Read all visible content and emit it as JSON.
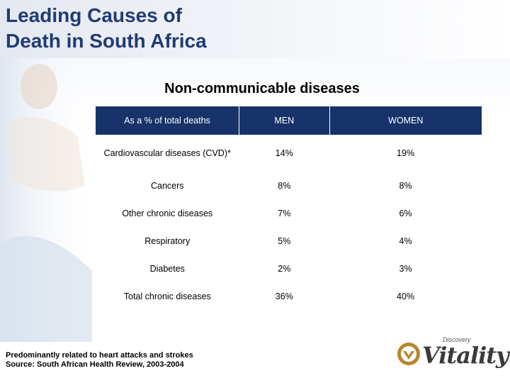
{
  "title": {
    "line1": "Leading Causes of",
    "line2": "Death in South Africa"
  },
  "subtitle": "Non-communicable diseases",
  "table": {
    "headers": [
      "As a % of total deaths",
      "MEN",
      "WOMEN"
    ],
    "rows": [
      {
        "label": "Cardiovascular diseases (CVD)*",
        "men": "14%",
        "women": "19%"
      },
      {
        "label": "Cancers",
        "men": "8%",
        "women": "8%"
      },
      {
        "label": "Other chronic diseases",
        "men": "7%",
        "women": "6%"
      },
      {
        "label": "Respiratory",
        "men": "5%",
        "women": "4%"
      },
      {
        "label": "Diabetes",
        "men": "2%",
        "women": "3%"
      },
      {
        "label": "Total chronic diseases",
        "men": "36%",
        "women": "40%"
      }
    ]
  },
  "footnotes": [
    "Predominantly related to heart attacks and strokes",
    "Source: South African Health Review, 2003-2004"
  ],
  "logo": {
    "small": "Discovery",
    "name": "Vitality"
  },
  "colors": {
    "title": "#1f3b73",
    "header_bg": "#17336a"
  }
}
